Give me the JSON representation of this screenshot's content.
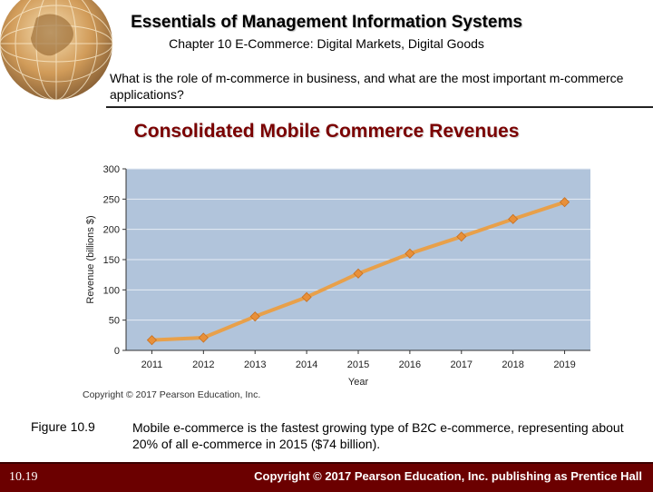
{
  "header": {
    "title": "Essentials of Management Information Systems",
    "subtitle": "Chapter 10 E-Commerce: Digital Markets, Digital Goods"
  },
  "question": "What is the role of m-commerce in business, and what are the most important m-commerce applications?",
  "chart_heading": "Consolidated Mobile Commerce Revenues",
  "chart_data": {
    "type": "line",
    "title": "Consolidated Mobile Commerce Revenues",
    "xlabel": "Year",
    "ylabel": "Revenue (billions $)",
    "categories": [
      "2011",
      "2012",
      "2013",
      "2014",
      "2015",
      "2016",
      "2017",
      "2018",
      "2019"
    ],
    "values": [
      17,
      21,
      56,
      88,
      127,
      160,
      188,
      217,
      245
    ],
    "ylim": [
      0,
      300
    ],
    "yticks": [
      0,
      50,
      100,
      150,
      200,
      250,
      300
    ],
    "grid": true,
    "colors": {
      "line": "#e8a04a",
      "marker": "#e8903a",
      "plot_bg": "#b1c4db",
      "grid": "#e6ecf4"
    },
    "copyright": "Copyright © 2017 Pearson Education, Inc."
  },
  "caption": {
    "label": "Figure 10.9",
    "text": "Mobile e-commerce is the fastest growing type of B2C e-commerce, representing about 20% of all e-commerce in 2015 ($74 billion)."
  },
  "footer": {
    "slide_number": "10.19",
    "copyright": "Copyright © 2017 Pearson Education, Inc. publishing as Prentice Hall"
  }
}
